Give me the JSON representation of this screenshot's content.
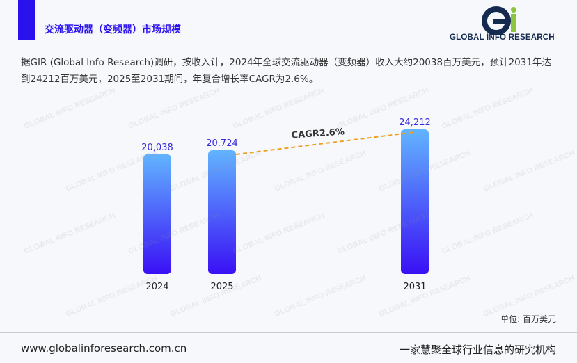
{
  "header": {
    "title": "交流驱动器（变频器）市场规模",
    "logo_text": "GLOBAL INFO RESEARCH",
    "logo_icon": "gi-logo-icon"
  },
  "description": "据GIR (Global Info Research)调研，按收入计，2024年全球交流驱动器（变频器）收入大约20038百万美元，预计2031年达到24212百万美元，2025至2031期间，年复合增长率CAGR为2.6%。",
  "chart_data": {
    "type": "bar",
    "categories": [
      "2024",
      "2025",
      "2031"
    ],
    "values": [
      20038,
      20724,
      24212
    ],
    "value_labels": [
      "20,038",
      "20,724",
      "24,212"
    ],
    "annotation": "CAGR2.6%",
    "bar_gradient": [
      "#62b4ff",
      "#3a10f5"
    ],
    "trend_line_color": "#f0a020",
    "value_label_color": "#3a2bdc"
  },
  "unit_label": "单位: 百万美元",
  "footer": {
    "website": "www.globalinforesearch.com.cn",
    "slogan": "一家慧聚全球行业信息的研究机构"
  },
  "watermark": "GLOBAL INFO RESEARCH"
}
